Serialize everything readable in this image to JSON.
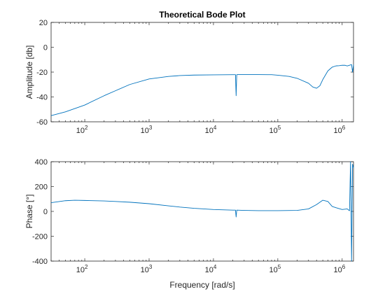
{
  "chart_data": [
    {
      "type": "line",
      "title": "Theoretical Bode Plot",
      "xlabel": "",
      "ylabel": "Amplitude [db]",
      "xscale": "log",
      "xlim": [
        30,
        1500000
      ],
      "ylim": [
        -60,
        20
      ],
      "xticks": [
        {
          "base": "10",
          "exp": "2",
          "value": 100
        },
        {
          "base": "10",
          "exp": "3",
          "value": 1000
        },
        {
          "base": "10",
          "exp": "4",
          "value": 10000
        },
        {
          "base": "10",
          "exp": "5",
          "value": 100000
        },
        {
          "base": "10",
          "exp": "6",
          "value": 1000000
        }
      ],
      "yticks": [
        {
          "label": "-60",
          "value": -60
        },
        {
          "label": "-40",
          "value": -40
        },
        {
          "label": "-20",
          "value": -20
        },
        {
          "label": "0",
          "value": 0
        },
        {
          "label": "20",
          "value": 20
        }
      ],
      "grid": false,
      "color": "#0072BD",
      "series": [
        {
          "x": [
            30,
            50,
            100,
            200,
            300,
            500,
            1000,
            2000,
            3000,
            5000,
            10000,
            20000,
            22000,
            22500,
            23000,
            24000,
            30000,
            50000,
            80000,
            100000,
            150000,
            200000,
            300000,
            350000,
            400000,
            450000,
            500000,
            600000,
            700000,
            800000,
            900000,
            1000000,
            1100000,
            1200000,
            1300000,
            1400000,
            1450000,
            1500000
          ],
          "y": [
            -55,
            -52,
            -46.5,
            -39,
            -35,
            -30,
            -25.5,
            -23.5,
            -22.8,
            -22.4,
            -22.2,
            -22.1,
            -22.1,
            -39,
            -22.1,
            -22.0,
            -22.0,
            -22.0,
            -22.1,
            -22.5,
            -23.5,
            -25,
            -29,
            -32,
            -33,
            -31,
            -26,
            -19,
            -16,
            -15,
            -14.8,
            -14.5,
            -14.5,
            -15,
            -14.5,
            -14,
            -20,
            -14
          ]
        }
      ]
    },
    {
      "type": "line",
      "title": "",
      "xlabel": "Frequency [rad/s]",
      "ylabel": "Phase [°]",
      "xscale": "log",
      "xlim": [
        30,
        1500000
      ],
      "ylim": [
        -400,
        400
      ],
      "xticks": [
        {
          "base": "10",
          "exp": "2",
          "value": 100
        },
        {
          "base": "10",
          "exp": "3",
          "value": 1000
        },
        {
          "base": "10",
          "exp": "4",
          "value": 10000
        },
        {
          "base": "10",
          "exp": "5",
          "value": 100000
        },
        {
          "base": "10",
          "exp": "6",
          "value": 1000000
        }
      ],
      "yticks": [
        {
          "label": "-400",
          "value": -400
        },
        {
          "label": "-200",
          "value": -200
        },
        {
          "label": "0",
          "value": 0
        },
        {
          "label": "200",
          "value": 200
        },
        {
          "label": "400",
          "value": 400
        }
      ],
      "grid": false,
      "color": "#0072BD",
      "series": [
        {
          "x": [
            30,
            50,
            70,
            100,
            200,
            300,
            500,
            1000,
            2000,
            3000,
            5000,
            10000,
            20000,
            22000,
            22500,
            23000,
            30000,
            50000,
            100000,
            200000,
            300000,
            400000,
            500000,
            600000,
            700000,
            800000,
            1000000,
            1200000,
            1300000,
            1350000,
            1400000,
            1450000,
            1500000
          ],
          "y": [
            70,
            86,
            90,
            88,
            84,
            80,
            74,
            62,
            45,
            35,
            25,
            15,
            10,
            10,
            -45,
            10,
            8,
            6,
            6,
            8,
            20,
            55,
            90,
            80,
            40,
            30,
            15,
            20,
            5,
            400,
            -400,
            380,
            350
          ]
        }
      ]
    }
  ]
}
